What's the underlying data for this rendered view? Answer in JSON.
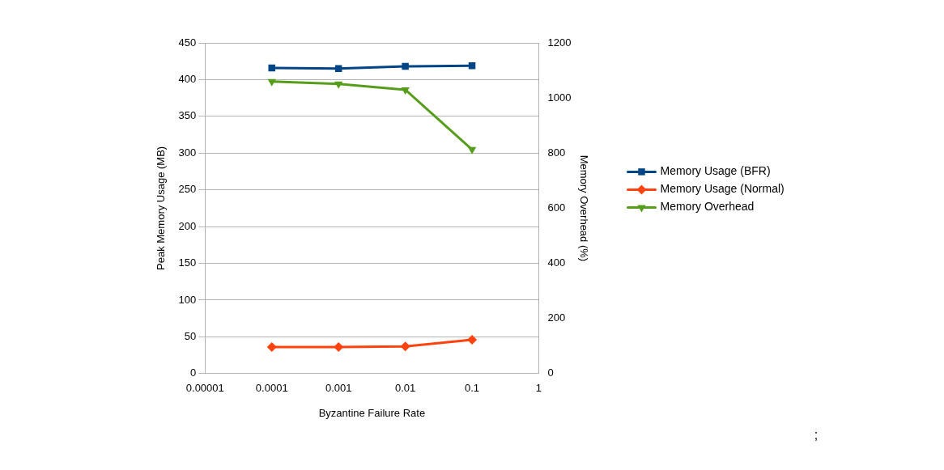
{
  "chart_data": {
    "type": "line",
    "xlabel": "Byzantine Failure Rate",
    "ylabel": "Peak Memory Usage (MB)",
    "y2label": "Memory Overhead (%)",
    "x": [
      0.0001,
      0.001,
      0.01,
      0.1
    ],
    "log": "x",
    "xlim": [
      1e-05,
      1
    ],
    "xticks": [
      {
        "value": 1e-05,
        "label": "0.00001"
      },
      0.0001,
      0.001,
      0.01,
      0.1,
      1
    ],
    "ylim": [
      0,
      450
    ],
    "yticks": [
      0,
      50,
      100,
      150,
      200,
      250,
      300,
      350,
      400,
      450
    ],
    "y2lim": [
      0,
      1200
    ],
    "y2ticks": [
      0,
      200,
      400,
      600,
      800,
      {
        "value": 1000,
        "label": "1000"
      },
      {
        "value": 1200,
        "label": "1200"
      }
    ],
    "series": [
      {
        "name": "Memory Usage (BFR)",
        "color": "#004586",
        "values": [
          416,
          415,
          418,
          419
        ],
        "marker": "square"
      },
      {
        "name": "Memory Usage (Normal)",
        "color": "#ff420e",
        "values": [
          36,
          36,
          37,
          46
        ],
        "marker": "diamond"
      },
      {
        "name": "Memory Overhead",
        "color": "#579d1c",
        "values": [
          1060,
          1051,
          1030,
          813
        ],
        "marker": "triangle",
        "axis": "y2"
      }
    ],
    "grid": "y",
    "legend": "right",
    "line_style": "solid",
    "annotations": [
      ";"
    ]
  }
}
